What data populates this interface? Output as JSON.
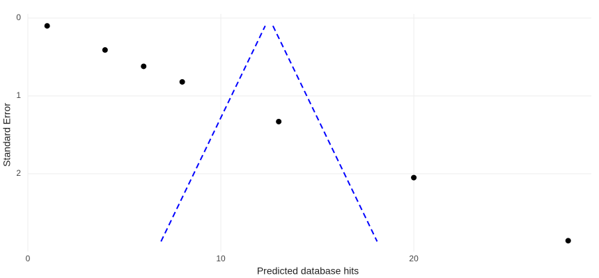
{
  "chart_data": {
    "type": "scatter",
    "xlabel": "Predicted database hits",
    "ylabel": "Standard Error",
    "xlim": [
      0,
      29.2
    ],
    "xticks": [
      0,
      10,
      20
    ],
    "ylim": [
      0,
      3
    ],
    "yticks": [
      0,
      1,
      2
    ],
    "yreversed": true,
    "grid": true,
    "series": [
      {
        "mode": "markers",
        "color": "#000000",
        "x": [
          1,
          4,
          6,
          8,
          13,
          20,
          28
        ],
        "values": [
          0.1,
          0.41,
          0.62,
          0.82,
          1.33,
          2.05,
          2.86
        ]
      },
      {
        "mode": "dashed-line",
        "color": "#0000ff",
        "x": [
          6.9,
          12.3
        ],
        "values": [
          2.87,
          0.1
        ]
      },
      {
        "mode": "dashed-line",
        "color": "#0000ff",
        "x": [
          12.7,
          18.1
        ],
        "values": [
          0.1,
          2.87
        ]
      }
    ]
  }
}
